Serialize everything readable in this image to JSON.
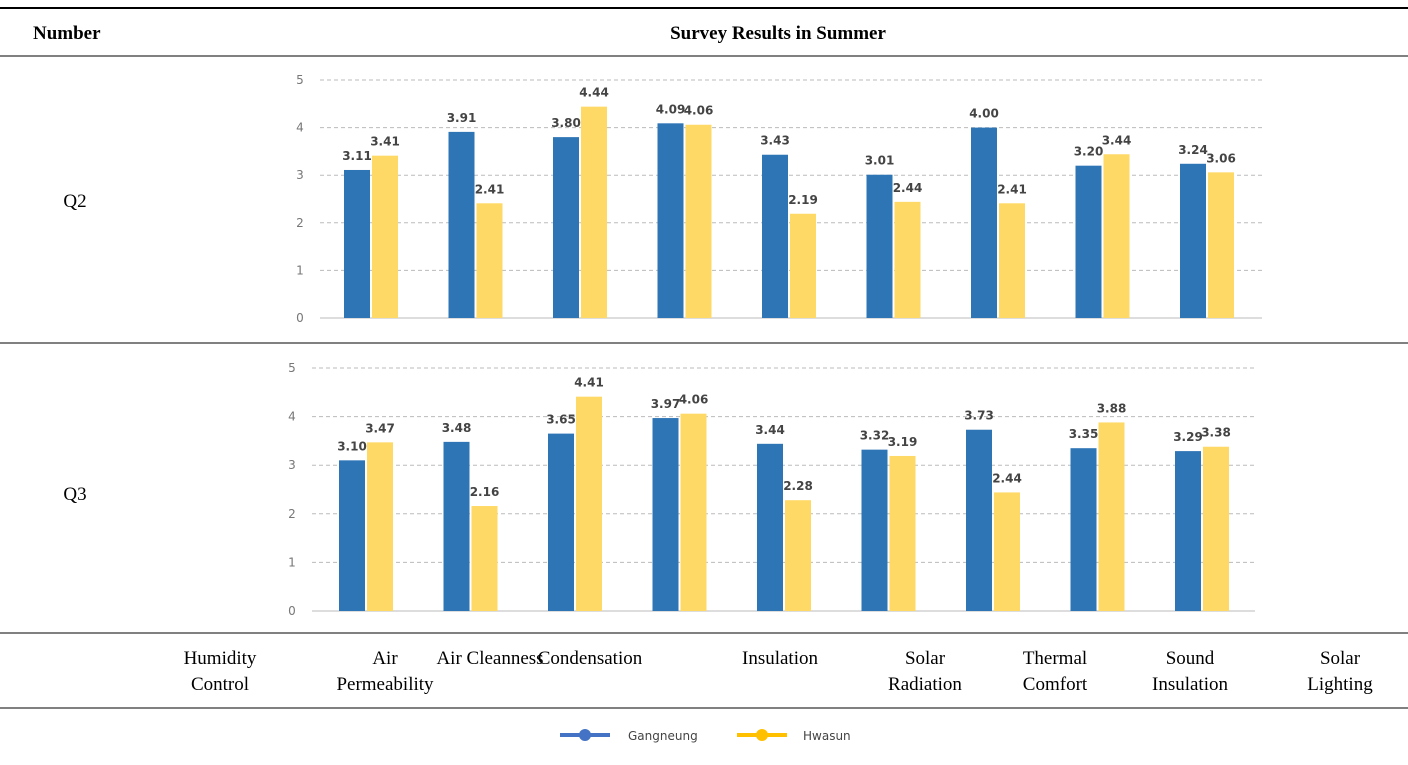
{
  "table": {
    "header": [
      "Number",
      "Survey Results in Summer"
    ],
    "row_labels": [
      "Q2",
      "Q3"
    ],
    "footer": [
      "Humidity Control",
      "Air Permeability",
      "Air Cleanness",
      "Condensation",
      "Insulation",
      "Solar Radiation",
      "Thermal Comfort",
      "Sound Insulation",
      "Solar Lighting"
    ]
  },
  "chart_data": [
    {
      "type": "bar",
      "ylim": [
        0,
        5
      ],
      "yticks": [
        0,
        1,
        2,
        3,
        4,
        5
      ],
      "grid": true,
      "series": [
        {
          "name": "Gangneung",
          "color": "#2e75b6",
          "values": [
            3.11,
            3.91,
            3.8,
            4.09,
            3.43,
            3.01,
            4.0,
            3.2,
            3.24
          ],
          "value_labels": [
            "3.11",
            "3.91",
            "3.80",
            "4.09",
            "3.43",
            "3.01",
            "4.00",
            "3.20",
            "3.24"
          ]
        },
        {
          "name": "Hwasun",
          "color": "#ffd966",
          "values": [
            3.41,
            2.41,
            4.44,
            4.06,
            2.19,
            2.44,
            2.41,
            3.44,
            3.06
          ],
          "value_labels": [
            "3.41",
            "2.41",
            "4.44",
            "4.06",
            "2.19",
            "2.44",
            "2.41",
            "3.44",
            "3.06"
          ]
        }
      ]
    },
    {
      "type": "bar",
      "ylim": [
        0,
        5
      ],
      "yticks": [
        0,
        1,
        2,
        3,
        4,
        5
      ],
      "grid": true,
      "series": [
        {
          "color": "#2e75b6",
          "values": [
            3.1,
            3.48,
            3.65,
            3.97,
            3.44,
            3.32,
            3.73,
            3.35,
            3.29
          ],
          "value_labels": [
            "3.10",
            "3.48",
            "3.65",
            "3.97",
            "3.44",
            "3.32",
            "3.73",
            "3.35",
            "3.29"
          ]
        },
        {
          "color": "#ffd966",
          "values": [
            3.47,
            2.16,
            4.41,
            4.06,
            2.28,
            3.19,
            2.44,
            3.88,
            3.38
          ],
          "value_labels": [
            "3.47",
            "2.16",
            "4.41",
            "4.06",
            "2.28",
            "3.19",
            "2.44",
            "3.88",
            "3.38"
          ]
        }
      ]
    }
  ]
}
